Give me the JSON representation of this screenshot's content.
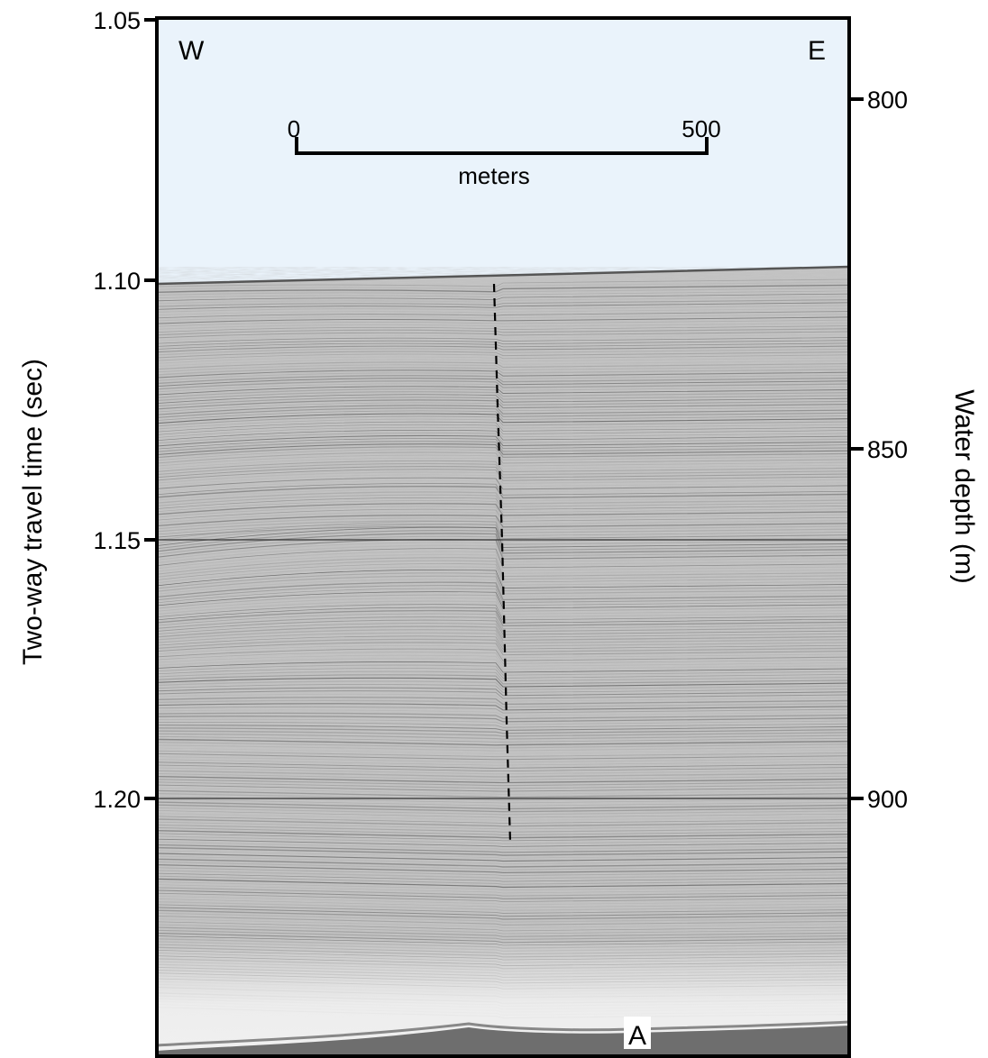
{
  "figure": {
    "left_axis": {
      "title": "Two-way travel time (sec)",
      "ticks": [
        "1.05",
        "1.10",
        "1.15",
        "1.20"
      ]
    },
    "right_axis": {
      "title": "Water depth (m)",
      "ticks": [
        "800",
        "850",
        "900"
      ]
    },
    "orientation": {
      "west": "W",
      "east": "E"
    },
    "scale_bar": {
      "start": "0",
      "end": "500",
      "unit": "meters"
    },
    "reflector_label": "A",
    "colors": {
      "water_column": "#eaf3fb",
      "sediment": "#c4c4c4",
      "frame": "#000000"
    }
  }
}
